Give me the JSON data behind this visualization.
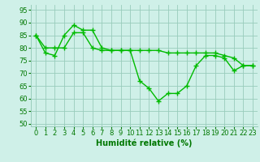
{
  "series": [
    {
      "x": [
        0,
        1,
        2,
        3,
        4,
        5,
        6,
        7,
        8,
        9,
        10,
        11,
        12,
        13,
        14,
        15,
        16,
        17,
        18,
        19,
        20,
        21,
        22,
        23
      ],
      "y": [
        85,
        78,
        77,
        85,
        89,
        87,
        87,
        80,
        79,
        79,
        79,
        67,
        64,
        59,
        62,
        62,
        65,
        73,
        77,
        77,
        76,
        71,
        73,
        73
      ]
    },
    {
      "x": [
        0,
        1,
        2,
        3,
        4,
        5,
        6,
        7,
        8,
        9,
        10,
        11,
        12,
        13,
        14,
        15,
        16,
        17,
        18,
        19,
        20,
        21,
        22,
        23
      ],
      "y": [
        85,
        80,
        80,
        80,
        86,
        86,
        80,
        79,
        79,
        79,
        79,
        79,
        79,
        79,
        78,
        78,
        78,
        78,
        78,
        78,
        77,
        76,
        73,
        73
      ]
    }
  ],
  "line_color": "#00bb00",
  "marker": "+",
  "markersize": 4,
  "linewidth": 1.0,
  "markeredgewidth": 1.0,
  "background_color": "#cff0e8",
  "grid_color": "#99ccbb",
  "xlim": [
    -0.5,
    23.5
  ],
  "ylim": [
    49,
    97
  ],
  "yticks": [
    50,
    55,
    60,
    65,
    70,
    75,
    80,
    85,
    90,
    95
  ],
  "xtick_labels": [
    "0",
    "1",
    "2",
    "3",
    "4",
    "5",
    "6",
    "7",
    "8",
    "9",
    "10",
    "11",
    "12",
    "13",
    "14",
    "15",
    "16",
    "17",
    "18",
    "19",
    "20",
    "21",
    "22",
    "23"
  ],
  "xlabel": "Humidité relative (%)",
  "xlabel_fontsize": 7,
  "xlabel_color": "#007700",
  "tick_fontsize": 6,
  "tick_color": "#007700"
}
